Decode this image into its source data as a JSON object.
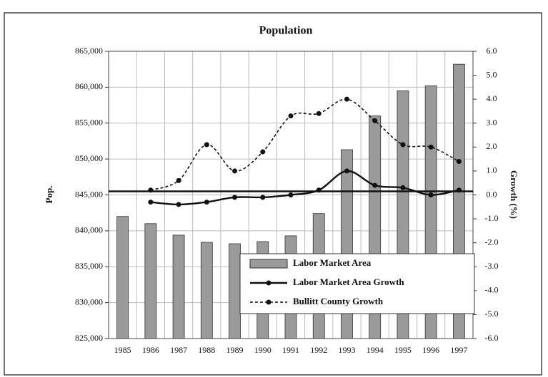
{
  "chart_data": {
    "type": "bar_line",
    "title": "Population",
    "y_label": "Pop.",
    "y2_label": "Growth (%)",
    "categories": [
      "1985",
      "1986",
      "1987",
      "1988",
      "1989",
      "1990",
      "1991",
      "1992",
      "1993",
      "1994",
      "1995",
      "1996",
      "1997"
    ],
    "series": [
      {
        "name": "Labor Market Area",
        "type": "bar",
        "color": "#9a9a9a",
        "values": [
          842000,
          841000,
          839400,
          838400,
          838200,
          838500,
          839300,
          842400,
          851300,
          856000,
          859500,
          860200,
          863200
        ]
      },
      {
        "name": "Labor Market Area Growth",
        "type": "line",
        "axis": "y2",
        "color": "#111111",
        "dashed": false,
        "values": [
          null,
          -0.3,
          -0.4,
          -0.3,
          -0.1,
          -0.1,
          0.0,
          0.2,
          1.0,
          0.4,
          0.3,
          0.0,
          0.2
        ]
      },
      {
        "name": "Bullitt County Growth",
        "type": "line",
        "axis": "y2",
        "color": "#111111",
        "dashed": true,
        "values": [
          null,
          0.2,
          0.6,
          2.1,
          1.0,
          1.8,
          3.3,
          3.4,
          4.0,
          3.1,
          2.1,
          2.0,
          1.4
        ]
      }
    ],
    "ylim": [
      825000,
      865000
    ],
    "yticks": [
      {
        "value": 825000,
        "label": "825,000"
      },
      {
        "value": 830000,
        "label": "830,000"
      },
      {
        "value": 835000,
        "label": "835,000"
      },
      {
        "value": 840000,
        "label": "840,000"
      },
      {
        "value": 845000,
        "label": "845,000"
      },
      {
        "value": 850000,
        "label": "850,000"
      },
      {
        "value": 855000,
        "label": "855,000"
      },
      {
        "value": 860000,
        "label": "860,000"
      },
      {
        "value": 865000,
        "label": "865,000"
      }
    ],
    "y2lim": [
      -6,
      6
    ],
    "y2ticks": [
      {
        "value": -6,
        "label": "-6.0"
      },
      {
        "value": -5,
        "label": "-5.0"
      },
      {
        "value": -4,
        "label": "-4.0"
      },
      {
        "value": -3,
        "label": "-3.0"
      },
      {
        "value": -2,
        "label": "-2.0"
      },
      {
        "value": -1,
        "label": "-1.0"
      },
      {
        "value": 0,
        "label": "0.0"
      },
      {
        "value": 1,
        "label": "1.0"
      },
      {
        "value": 2,
        "label": "2.0"
      },
      {
        "value": 3,
        "label": "3.0"
      },
      {
        "value": 4,
        "label": "4.0"
      },
      {
        "value": 5,
        "label": "5.0"
      },
      {
        "value": 6,
        "label": "6.0"
      }
    ],
    "grid": true
  }
}
